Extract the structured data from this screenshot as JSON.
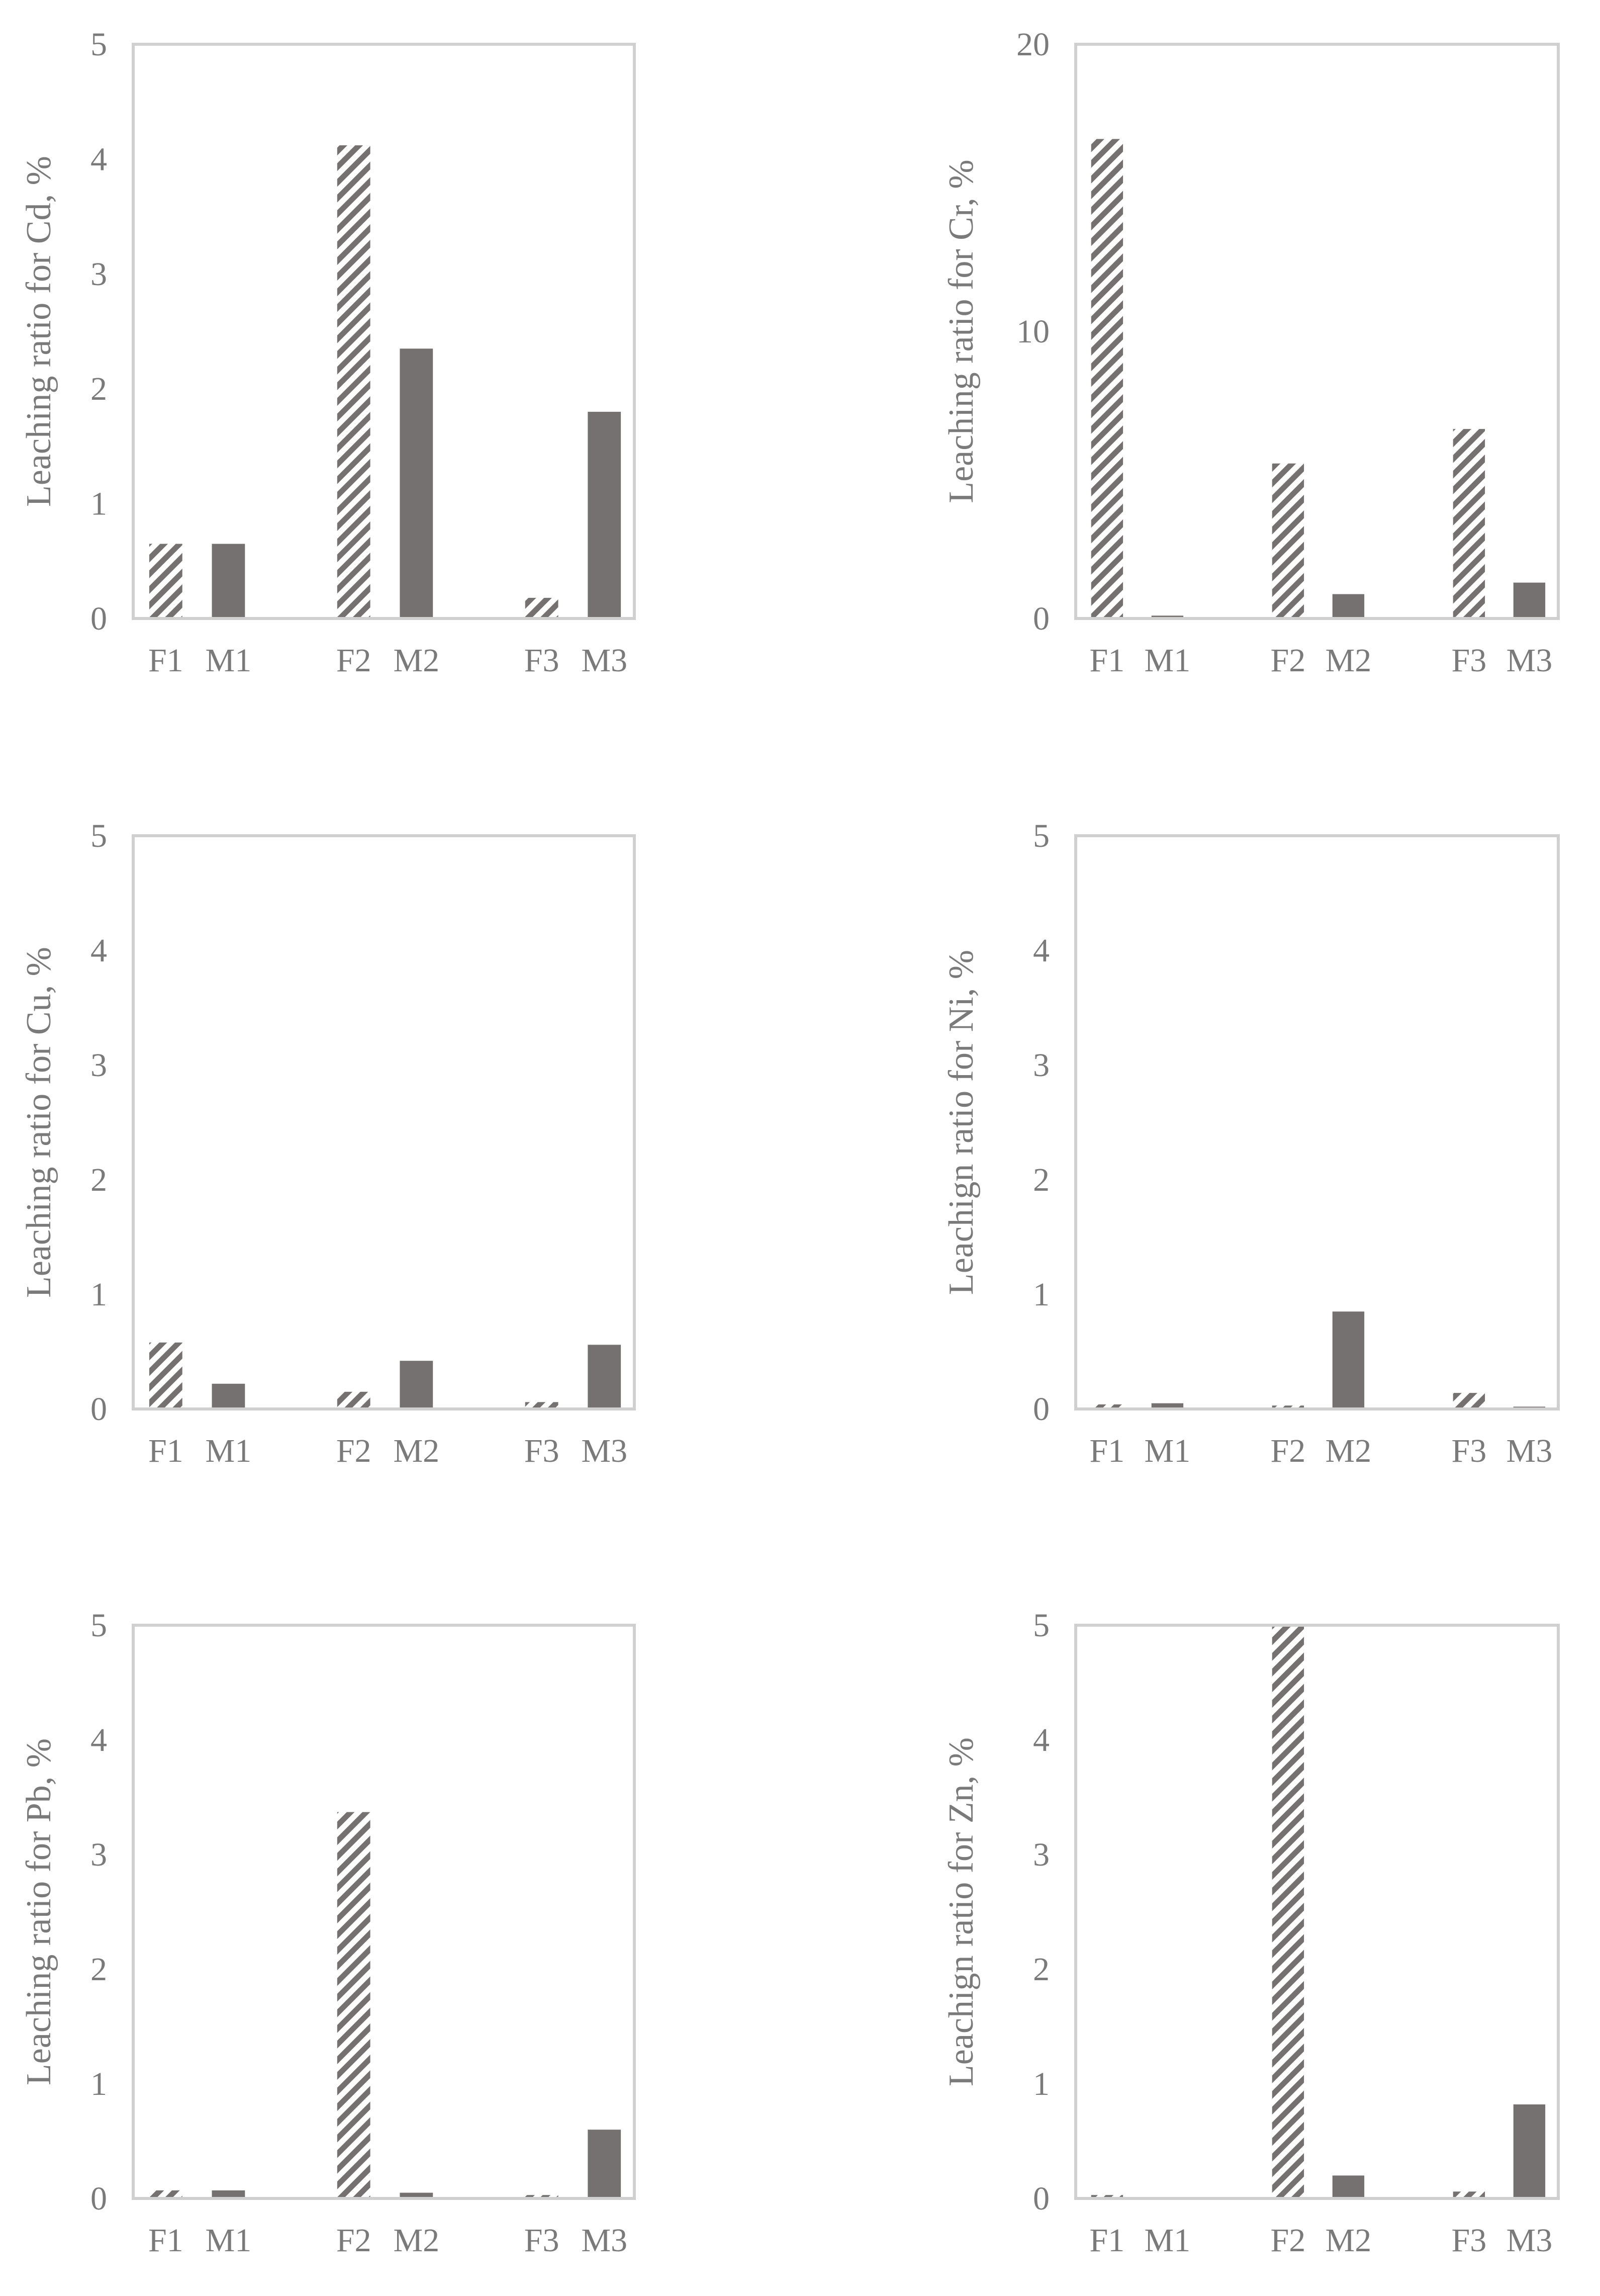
{
  "colors": {
    "bar": "#767171",
    "axis": "#d0d0d0",
    "text": "#7a7a7a",
    "background": "#ffffff"
  },
  "chart_data": [
    {
      "type": "bar",
      "title": "",
      "xlabel": "",
      "ylabel": "Leaching ratio for Cd, %",
      "ylim": [
        0,
        5
      ],
      "yticks": [
        0,
        1,
        2,
        3,
        4,
        5
      ],
      "categories": [
        "F1",
        "M1",
        "F2",
        "M2",
        "F3",
        "M3"
      ],
      "values": [
        0.65,
        0.65,
        4.12,
        2.35,
        0.18,
        1.8
      ],
      "patterns": [
        "hatch",
        "solid",
        "hatch",
        "solid",
        "hatch",
        "solid"
      ]
    },
    {
      "type": "bar",
      "title": "",
      "xlabel": "",
      "ylabel": "Leaching ratio for Cr, %",
      "ylim": [
        0,
        20
      ],
      "yticks": [
        0,
        10,
        20
      ],
      "categories": [
        "F1",
        "M1",
        "F2",
        "M2",
        "F3",
        "M3"
      ],
      "values": [
        16.7,
        0.1,
        5.4,
        0.85,
        6.6,
        1.25
      ],
      "patterns": [
        "hatch",
        "solid",
        "hatch",
        "solid",
        "hatch",
        "solid"
      ]
    },
    {
      "type": "bar",
      "title": "",
      "xlabel": "",
      "ylabel": "Leaching ratio for Cu, %",
      "ylim": [
        0,
        5
      ],
      "yticks": [
        0,
        1,
        2,
        3,
        4,
        5
      ],
      "categories": [
        "F1",
        "M1",
        "F2",
        "M2",
        "F3",
        "M3"
      ],
      "values": [
        0.58,
        0.22,
        0.15,
        0.42,
        0.06,
        0.56
      ],
      "patterns": [
        "hatch",
        "solid",
        "hatch",
        "solid",
        "hatch",
        "solid"
      ]
    },
    {
      "type": "bar",
      "title": "",
      "xlabel": "",
      "ylabel": "Leachign ratio for Ni, %",
      "ylim": [
        0,
        5
      ],
      "yticks": [
        0,
        1,
        2,
        3,
        4,
        5
      ],
      "categories": [
        "F1",
        "M1",
        "F2",
        "M2",
        "F3",
        "M3"
      ],
      "values": [
        0.04,
        0.05,
        0.03,
        0.85,
        0.14,
        0.02
      ],
      "patterns": [
        "hatch",
        "solid",
        "hatch",
        "solid",
        "hatch",
        "solid"
      ]
    },
    {
      "type": "bar",
      "title": "",
      "xlabel": "",
      "ylabel": "Leaching ratio for Pb, %",
      "ylim": [
        0,
        5
      ],
      "yticks": [
        0,
        1,
        2,
        3,
        4,
        5
      ],
      "categories": [
        "F1",
        "M1",
        "F2",
        "M2",
        "F3",
        "M3"
      ],
      "values": [
        0.07,
        0.07,
        3.37,
        0.05,
        0.03,
        0.6
      ],
      "patterns": [
        "hatch",
        "solid",
        "hatch",
        "solid",
        "hatch",
        "solid"
      ]
    },
    {
      "type": "bar",
      "title": "",
      "xlabel": "",
      "ylabel": "Leachign ratio for Zn, %",
      "ylim": [
        0,
        5
      ],
      "yticks": [
        0,
        1,
        2,
        3,
        4,
        5
      ],
      "categories": [
        "F1",
        "M1",
        "F2",
        "M2",
        "F3",
        "M3"
      ],
      "values": [
        0.03,
        0.0,
        5.0,
        0.2,
        0.06,
        0.82
      ],
      "patterns": [
        "hatch",
        "solid",
        "hatch",
        "solid",
        "hatch",
        "solid"
      ]
    }
  ]
}
